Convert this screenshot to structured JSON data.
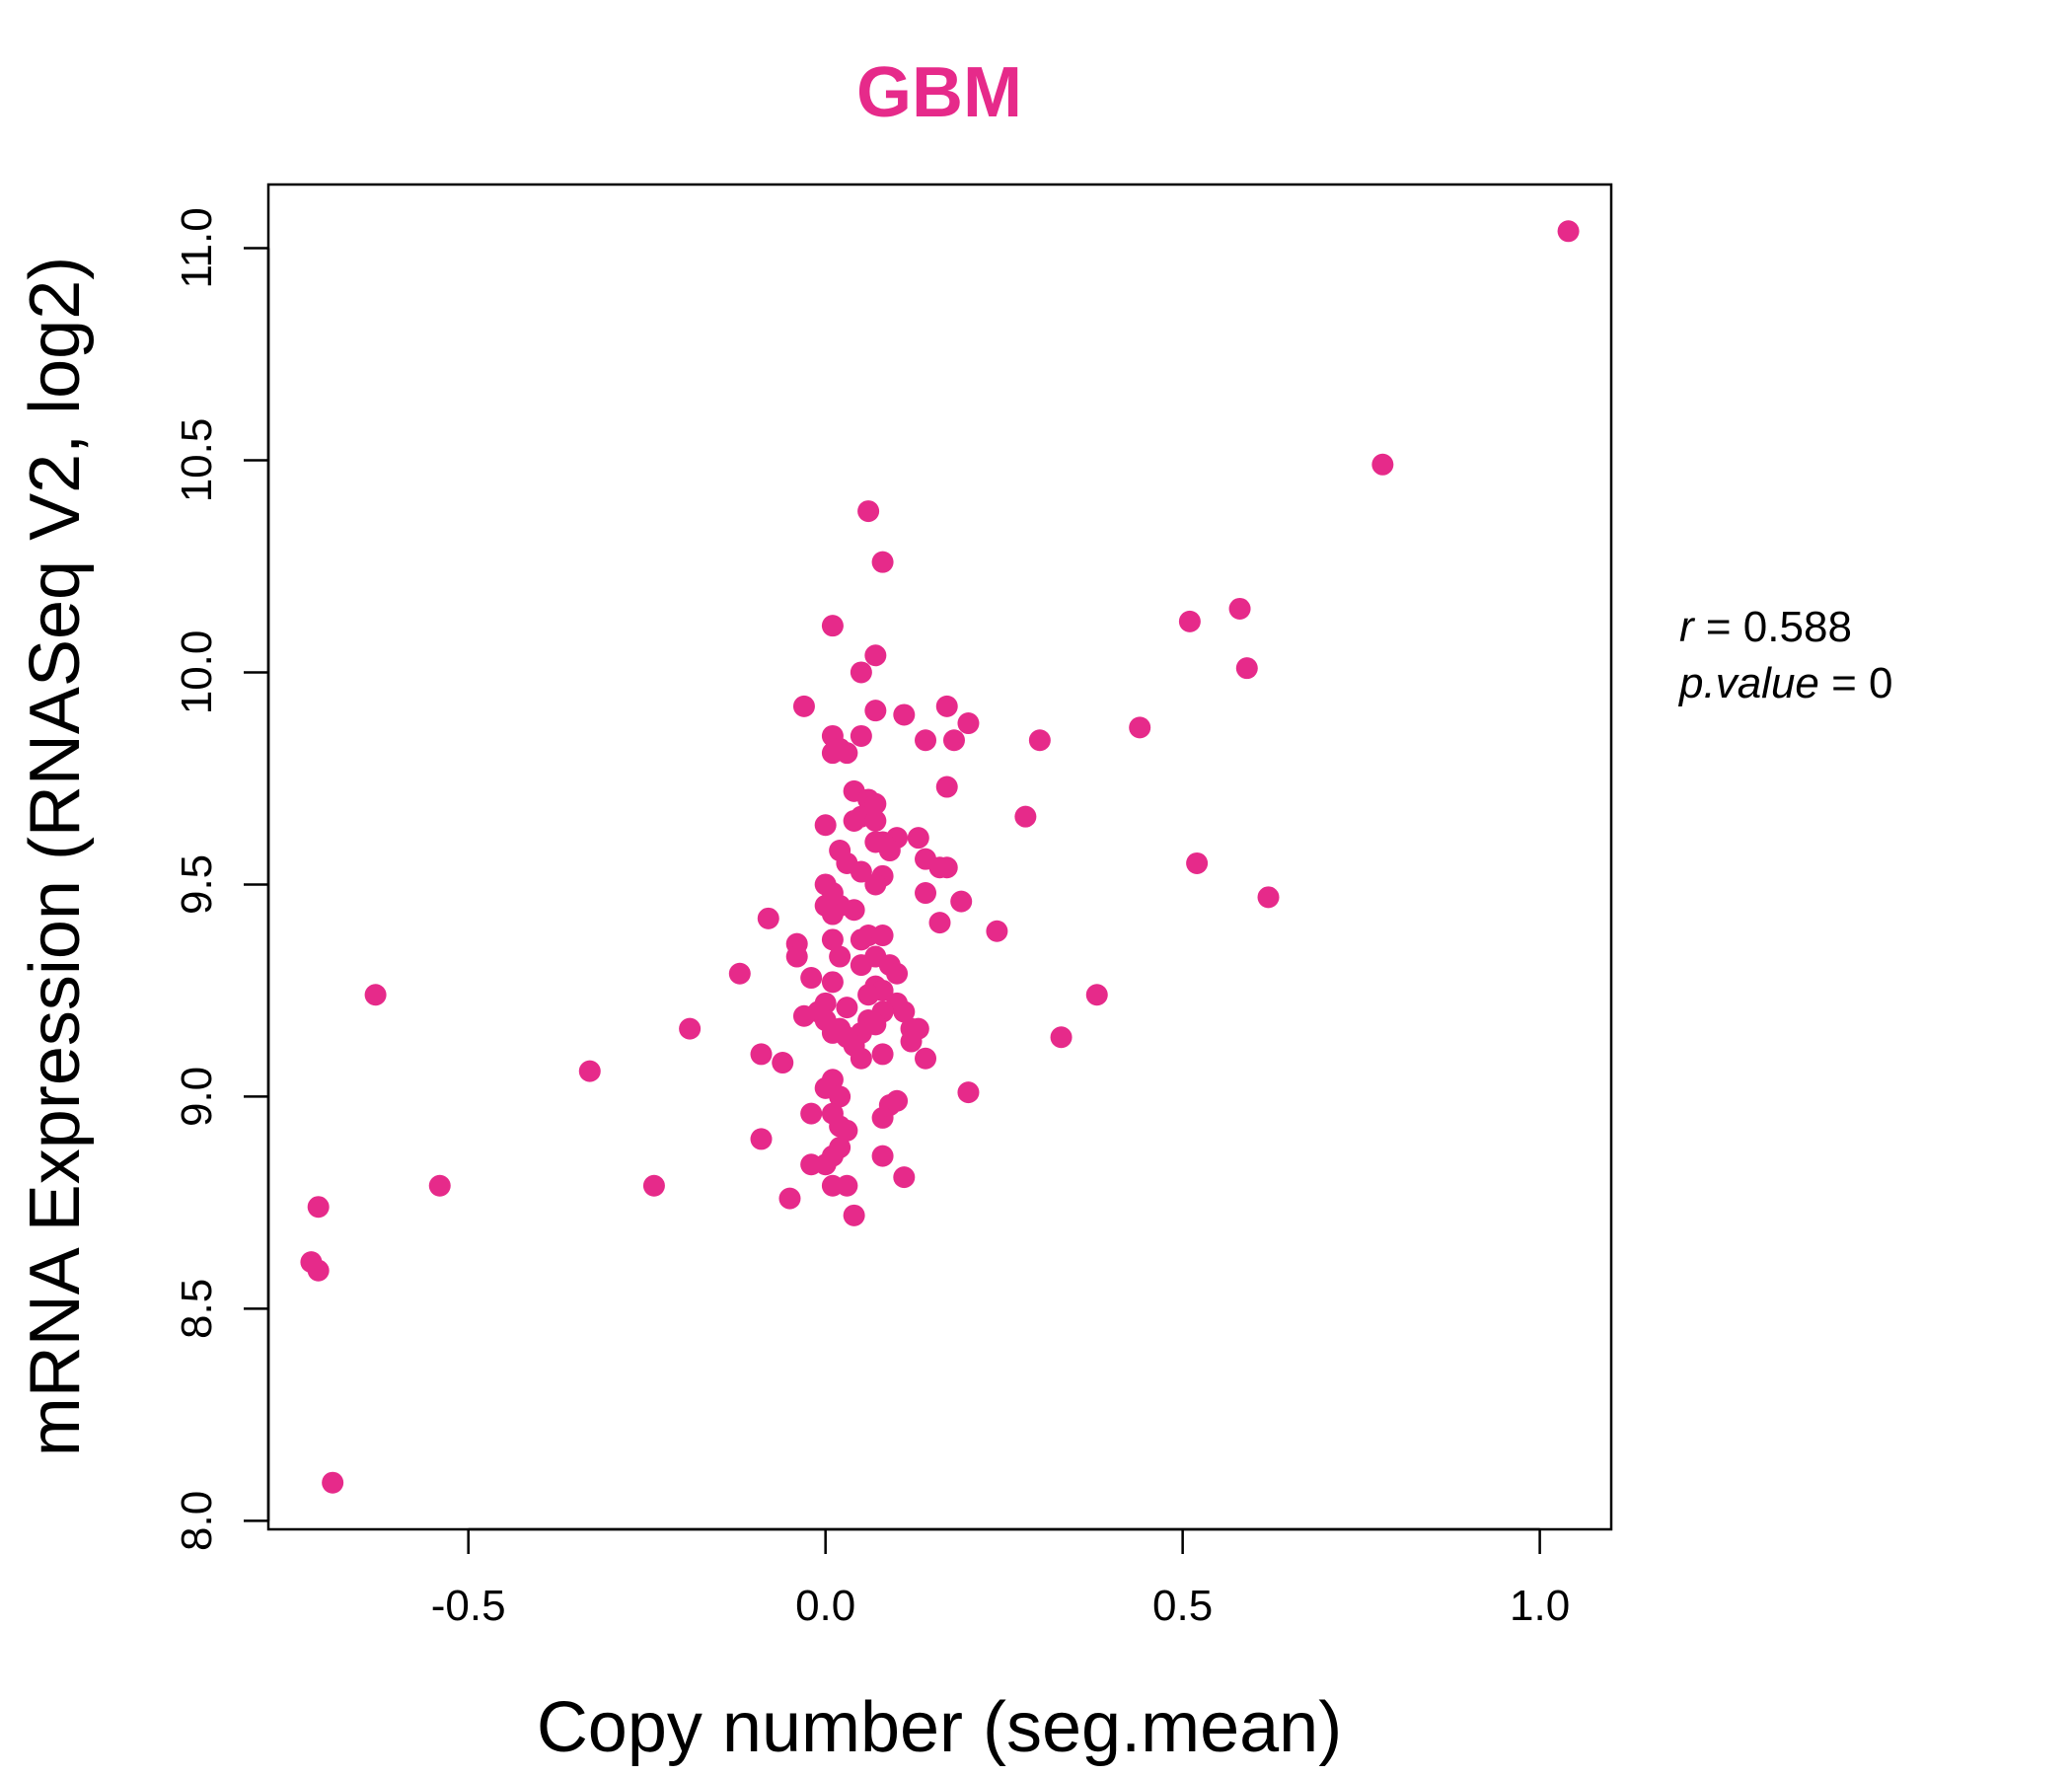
{
  "chart_data": {
    "type": "scatter",
    "title": "GBM",
    "xlabel": "Copy number (seg.mean)",
    "ylabel": "mRNA Expression (RNASeq V2, log2)",
    "xlim": [
      -0.78,
      1.1
    ],
    "ylim": [
      7.98,
      11.15
    ],
    "xticks": [
      -0.5,
      0.0,
      0.5,
      1.0
    ],
    "xtick_labels": [
      "-0.5",
      "0.0",
      "0.5",
      "1.0"
    ],
    "yticks": [
      8.0,
      8.5,
      9.0,
      9.5,
      10.0,
      10.5,
      11.0
    ],
    "ytick_labels": [
      "8.0",
      "8.5",
      "9.0",
      "9.5",
      "10.0",
      "10.5",
      "11.0"
    ],
    "grid": false,
    "color": "#E62A8A",
    "annotations": [
      {
        "var": "r",
        "eq": " = ",
        "value": "0.588"
      },
      {
        "var": "p.value",
        "eq": " = ",
        "value": "0"
      }
    ],
    "points": [
      [
        1.04,
        11.04
      ],
      [
        0.78,
        10.49
      ],
      [
        0.06,
        10.38
      ],
      [
        0.08,
        10.26
      ],
      [
        0.58,
        10.15
      ],
      [
        0.51,
        10.12
      ],
      [
        0.01,
        10.11
      ],
      [
        0.59,
        10.01
      ],
      [
        0.07,
        10.04
      ],
      [
        0.05,
        10.0
      ],
      [
        -0.03,
        9.92
      ],
      [
        0.07,
        9.91
      ],
      [
        0.11,
        9.9
      ],
      [
        0.17,
        9.92
      ],
      [
        0.2,
        9.88
      ],
      [
        0.44,
        9.87
      ],
      [
        0.3,
        9.84
      ],
      [
        0.18,
        9.84
      ],
      [
        0.14,
        9.84
      ],
      [
        0.01,
        9.85
      ],
      [
        0.05,
        9.85
      ],
      [
        0.02,
        9.82
      ],
      [
        0.03,
        9.81
      ],
      [
        0.01,
        9.81
      ],
      [
        0.17,
        9.73
      ],
      [
        0.04,
        9.72
      ],
      [
        0.06,
        9.7
      ],
      [
        0.07,
        9.69
      ],
      [
        0.05,
        9.66
      ],
      [
        0.07,
        9.65
      ],
      [
        0.28,
        9.66
      ],
      [
        0.0,
        9.64
      ],
      [
        0.04,
        9.65
      ],
      [
        0.1,
        9.61
      ],
      [
        0.13,
        9.61
      ],
      [
        0.08,
        9.6
      ],
      [
        0.07,
        9.6
      ],
      [
        0.09,
        9.58
      ],
      [
        0.02,
        9.58
      ],
      [
        0.14,
        9.56
      ],
      [
        0.03,
        9.55
      ],
      [
        0.16,
        9.54
      ],
      [
        0.17,
        9.54
      ],
      [
        0.52,
        9.55
      ],
      [
        0.05,
        9.53
      ],
      [
        0.08,
        9.52
      ],
      [
        0.07,
        9.5
      ],
      [
        0.0,
        9.5
      ],
      [
        0.01,
        9.48
      ],
      [
        0.14,
        9.48
      ],
      [
        0.19,
        9.46
      ],
      [
        0.62,
        9.47
      ],
      [
        0.0,
        9.45
      ],
      [
        0.02,
        9.45
      ],
      [
        0.04,
        9.44
      ],
      [
        0.01,
        9.43
      ],
      [
        -0.08,
        9.42
      ],
      [
        0.16,
        9.41
      ],
      [
        0.24,
        9.39
      ],
      [
        0.06,
        9.38
      ],
      [
        0.08,
        9.38
      ],
      [
        0.05,
        9.37
      ],
      [
        0.01,
        9.37
      ],
      [
        -0.04,
        9.36
      ],
      [
        0.02,
        9.33
      ],
      [
        -0.04,
        9.33
      ],
      [
        0.07,
        9.33
      ],
      [
        0.09,
        9.31
      ],
      [
        0.05,
        9.31
      ],
      [
        0.1,
        9.29
      ],
      [
        -0.12,
        9.29
      ],
      [
        -0.02,
        9.28
      ],
      [
        0.01,
        9.27
      ],
      [
        0.07,
        9.26
      ],
      [
        0.08,
        9.25
      ],
      [
        0.06,
        9.24
      ],
      [
        0.38,
        9.24
      ],
      [
        -0.63,
        9.24
      ],
      [
        0.0,
        9.22
      ],
      [
        0.1,
        9.22
      ],
      [
        0.03,
        9.21
      ],
      [
        0.08,
        9.2
      ],
      [
        0.11,
        9.2
      ],
      [
        -0.01,
        9.2
      ],
      [
        -0.03,
        9.19
      ],
      [
        0.06,
        9.18
      ],
      [
        0.0,
        9.18
      ],
      [
        0.07,
        9.17
      ],
      [
        0.02,
        9.16
      ],
      [
        0.12,
        9.16
      ],
      [
        0.13,
        9.16
      ],
      [
        -0.19,
        9.16
      ],
      [
        0.01,
        9.15
      ],
      [
        0.05,
        9.15
      ],
      [
        0.03,
        9.14
      ],
      [
        0.12,
        9.13
      ],
      [
        0.33,
        9.14
      ],
      [
        0.04,
        9.12
      ],
      [
        0.08,
        9.1
      ],
      [
        0.05,
        9.09
      ],
      [
        -0.09,
        9.1
      ],
      [
        0.14,
        9.09
      ],
      [
        -0.06,
        9.08
      ],
      [
        -0.33,
        9.06
      ],
      [
        0.01,
        9.04
      ],
      [
        0.0,
        9.02
      ],
      [
        0.2,
        9.01
      ],
      [
        0.02,
        9.0
      ],
      [
        0.1,
        8.99
      ],
      [
        0.09,
        8.98
      ],
      [
        0.01,
        8.96
      ],
      [
        -0.02,
        8.96
      ],
      [
        0.08,
        8.95
      ],
      [
        0.02,
        8.93
      ],
      [
        0.03,
        8.92
      ],
      [
        -0.09,
        8.9
      ],
      [
        0.02,
        8.88
      ],
      [
        0.08,
        8.86
      ],
      [
        0.01,
        8.86
      ],
      [
        0.0,
        8.84
      ],
      [
        -0.02,
        8.84
      ],
      [
        0.11,
        8.81
      ],
      [
        0.01,
        8.79
      ],
      [
        0.03,
        8.79
      ],
      [
        -0.24,
        8.79
      ],
      [
        -0.54,
        8.79
      ],
      [
        -0.05,
        8.76
      ],
      [
        0.04,
        8.72
      ],
      [
        -0.71,
        8.74
      ],
      [
        -0.72,
        8.61
      ],
      [
        -0.71,
        8.59
      ],
      [
        -0.69,
        8.09
      ]
    ]
  }
}
